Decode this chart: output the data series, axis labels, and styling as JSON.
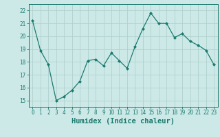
{
  "x": [
    0,
    1,
    2,
    3,
    4,
    5,
    6,
    7,
    8,
    9,
    10,
    11,
    12,
    13,
    14,
    15,
    16,
    17,
    18,
    19,
    20,
    21,
    22,
    23
  ],
  "y": [
    21.2,
    18.9,
    17.8,
    15.0,
    15.3,
    15.8,
    16.5,
    18.1,
    18.2,
    17.7,
    18.7,
    18.1,
    17.5,
    19.2,
    20.6,
    21.8,
    21.0,
    21.0,
    19.9,
    20.2,
    19.6,
    19.3,
    18.9,
    17.8
  ],
  "line_color": "#1a7a6e",
  "marker": "D",
  "marker_size": 2,
  "bg_color": "#cce9e7",
  "grid_color": "#b0d0ce",
  "xlabel": "Humidex (Indice chaleur)",
  "xlim": [
    -0.5,
    23.5
  ],
  "ylim": [
    14.5,
    22.5
  ],
  "xticks": [
    0,
    1,
    2,
    3,
    4,
    5,
    6,
    7,
    8,
    9,
    10,
    11,
    12,
    13,
    14,
    15,
    16,
    17,
    18,
    19,
    20,
    21,
    22,
    23
  ],
  "yticks": [
    15,
    16,
    17,
    18,
    19,
    20,
    21,
    22
  ],
  "axis_color": "#1a7a6e",
  "tick_fontsize": 5.5,
  "xlabel_fontsize": 7.5
}
